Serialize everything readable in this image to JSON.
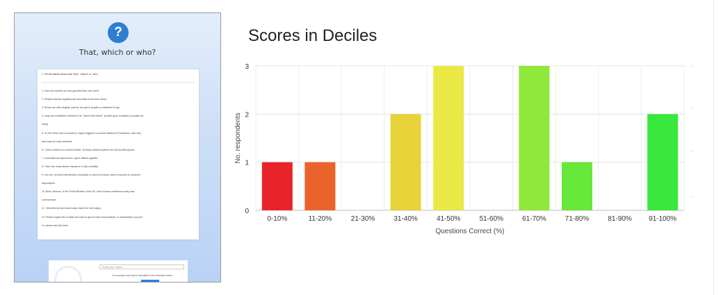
{
  "thumbnail": {
    "icon": "question-icon",
    "icon_glyph": "?",
    "title": "That, which or who?",
    "instruction": "1. Fill the blanks below with \"that\", \"which\" or \"who\".",
    "lines": [
      "1. Cars            are hybrids use less gasoline than cars            aren't.",
      "2. People            exercise regularly are less likely to become obese.",
      "3. Roses            are often brightly colored, are given as gifts on Valentine's Day.",
      "4. Dogs            are sometimes referred to as \"man's best friend\", provide good company to people            are",
      "lonely.",
      "5. In 2011 there was a tsunami in Japan            triggered a nuclear incident at Fukushima,            was very",
      "bad news for local residents.",
      "6. I have a friend            is a concert pianist. He plays classical pieces            are old but still popular.",
      "7. A scientist has discovered a gene            affects appetite.",
      "8. There are many factors            impact on a city's livability.",
      "9. Iron ore,            is found extensively in Australia, is used to produce steel            is required to construct",
      "skyscrapers.",
      "10. Boris Johnson,            is the Prime Minister of the UK, held a press conference today            was",
      "controversial.",
      "11. I finished my last exam today,            made me very happy.",
      "12. Plants            require lots of water are hard to grow in arid environments,            is unfortunate if you live",
      "in a desert and like ferns."
    ],
    "name_placeholder": "Enter your name...",
    "name_note": "Your answers will only be submitted to the worksheet owner."
  },
  "heading": "Scores in Deciles",
  "chart_data": {
    "type": "bar",
    "title": "Scores in Deciles",
    "xlabel": "Questions Correct (%)",
    "ylabel": "No. respondents",
    "categories": [
      "0-10%",
      "11-20%",
      "21-30%",
      "31-40%",
      "41-50%",
      "51-60%",
      "61-70%",
      "71-80%",
      "81-90%",
      "91-100%"
    ],
    "values": [
      1,
      1,
      0,
      2,
      3,
      0,
      3,
      1,
      0,
      2
    ],
    "colors": [
      "#e8232a",
      "#ea632a",
      "#e8d23a",
      "#e8d23a",
      "#eae845",
      "#c9ea3a",
      "#8fe83a",
      "#68e83a",
      "#4ae83a",
      "#38e83c"
    ],
    "ylim": [
      0,
      3
    ],
    "yticks": [
      0,
      1,
      2,
      3
    ],
    "grid": true
  }
}
